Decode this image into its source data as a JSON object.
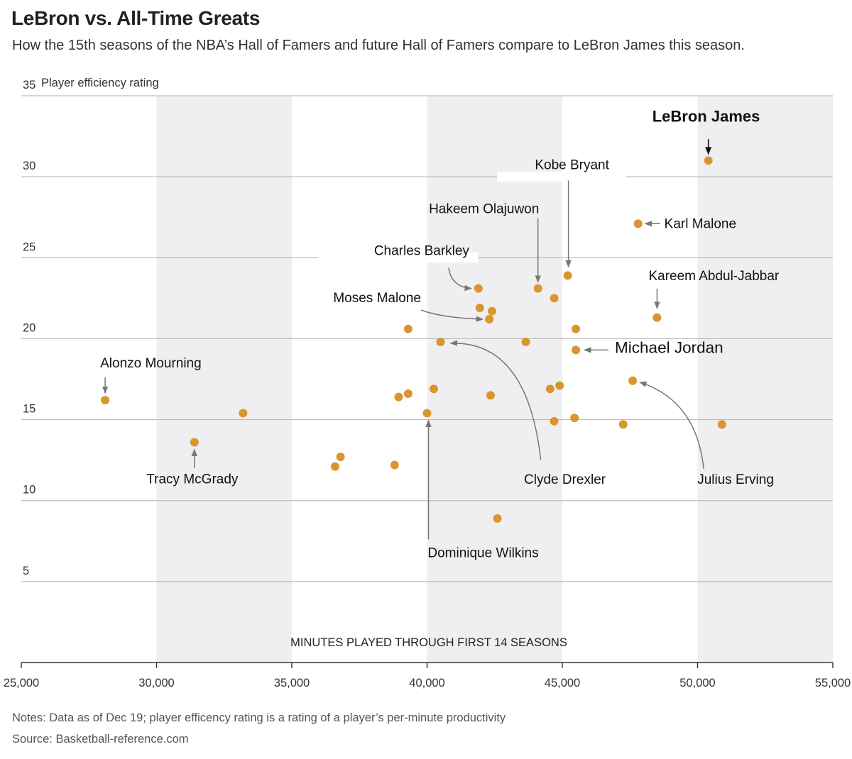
{
  "header": {
    "title": "LeBron vs. All-Time Greats",
    "subtitle": "How the 15th seasons of the NBA’s Hall of Famers and future Hall of Famers compare to LeBron James this season."
  },
  "footer": {
    "notes": "Notes: Data as of Dec 19; player efficency rating is a rating of a player’s per-minute productivity",
    "source": "Source: Basketball-reference.com"
  },
  "colors": {
    "dot": "#D9962F",
    "band": "#EFEFF1",
    "grid": "#BDBDBD",
    "arrow": "#777777"
  },
  "chart_data": {
    "type": "scatter",
    "title": "LeBron vs. All-Time Greats",
    "xlabel": "MINUTES PLAYED THROUGH FIRST 14 SEASONS",
    "ylabel": "Player efficiency rating",
    "xlim": [
      25000,
      55000
    ],
    "ylim": [
      0,
      35
    ],
    "x_ticks": [
      25000,
      30000,
      35000,
      40000,
      45000,
      50000,
      55000
    ],
    "x_tick_labels": [
      "25,000",
      "30,000",
      "35,000",
      "40,000",
      "45,000",
      "50,000",
      "55,000"
    ],
    "y_ticks": [
      5,
      10,
      15,
      20,
      25,
      30,
      35
    ],
    "y_tick_labels": [
      "5",
      "10",
      "15",
      "20",
      "25",
      "30",
      "35"
    ],
    "shaded_x_ranges": [
      [
        30000,
        35000
      ],
      [
        40000,
        45000
      ],
      [
        50000,
        55000
      ]
    ],
    "points": [
      {
        "x": 50400,
        "y": 31.0,
        "label": "LeBron James"
      },
      {
        "x": 47800,
        "y": 27.1,
        "label": "Karl Malone"
      },
      {
        "x": 45200,
        "y": 23.9,
        "label": "Kobe Bryant"
      },
      {
        "x": 44100,
        "y": 23.1,
        "label": "Hakeem Olajuwon"
      },
      {
        "x": 41900,
        "y": 23.1,
        "label": "Charles Barkley"
      },
      {
        "x": 48500,
        "y": 21.3,
        "label": "Kareem Abdul-Jabbar"
      },
      {
        "x": 42300,
        "y": 21.2,
        "label": "Moses Malone"
      },
      {
        "x": 45500,
        "y": 19.3,
        "label": "Michael Jordan"
      },
      {
        "x": 40500,
        "y": 19.8,
        "label": "Clyde Drexler"
      },
      {
        "x": 47600,
        "y": 17.4,
        "label": "Julius Erving"
      },
      {
        "x": 28100,
        "y": 16.2,
        "label": "Alonzo Mourning"
      },
      {
        "x": 31400,
        "y": 13.6,
        "label": "Tracy McGrady"
      },
      {
        "x": 40000,
        "y": 15.4,
        "label": "Dominique Wilkins"
      },
      {
        "x": 44700,
        "y": 22.5,
        "label": ""
      },
      {
        "x": 41950,
        "y": 21.9,
        "label": ""
      },
      {
        "x": 42400,
        "y": 21.7,
        "label": ""
      },
      {
        "x": 39300,
        "y": 20.6,
        "label": ""
      },
      {
        "x": 45500,
        "y": 20.6,
        "label": ""
      },
      {
        "x": 43650,
        "y": 19.8,
        "label": ""
      },
      {
        "x": 40250,
        "y": 16.9,
        "label": ""
      },
      {
        "x": 39300,
        "y": 16.6,
        "label": ""
      },
      {
        "x": 38950,
        "y": 16.4,
        "label": ""
      },
      {
        "x": 42350,
        "y": 16.5,
        "label": ""
      },
      {
        "x": 44550,
        "y": 16.9,
        "label": ""
      },
      {
        "x": 44900,
        "y": 17.1,
        "label": ""
      },
      {
        "x": 33200,
        "y": 15.4,
        "label": ""
      },
      {
        "x": 45450,
        "y": 15.1,
        "label": ""
      },
      {
        "x": 44700,
        "y": 14.9,
        "label": ""
      },
      {
        "x": 47250,
        "y": 14.7,
        "label": ""
      },
      {
        "x": 50900,
        "y": 14.7,
        "label": ""
      },
      {
        "x": 36800,
        "y": 12.7,
        "label": ""
      },
      {
        "x": 36600,
        "y": 12.1,
        "label": ""
      },
      {
        "x": 38800,
        "y": 12.2,
        "label": ""
      },
      {
        "x": 42600,
        "y": 8.9,
        "label": ""
      }
    ]
  }
}
